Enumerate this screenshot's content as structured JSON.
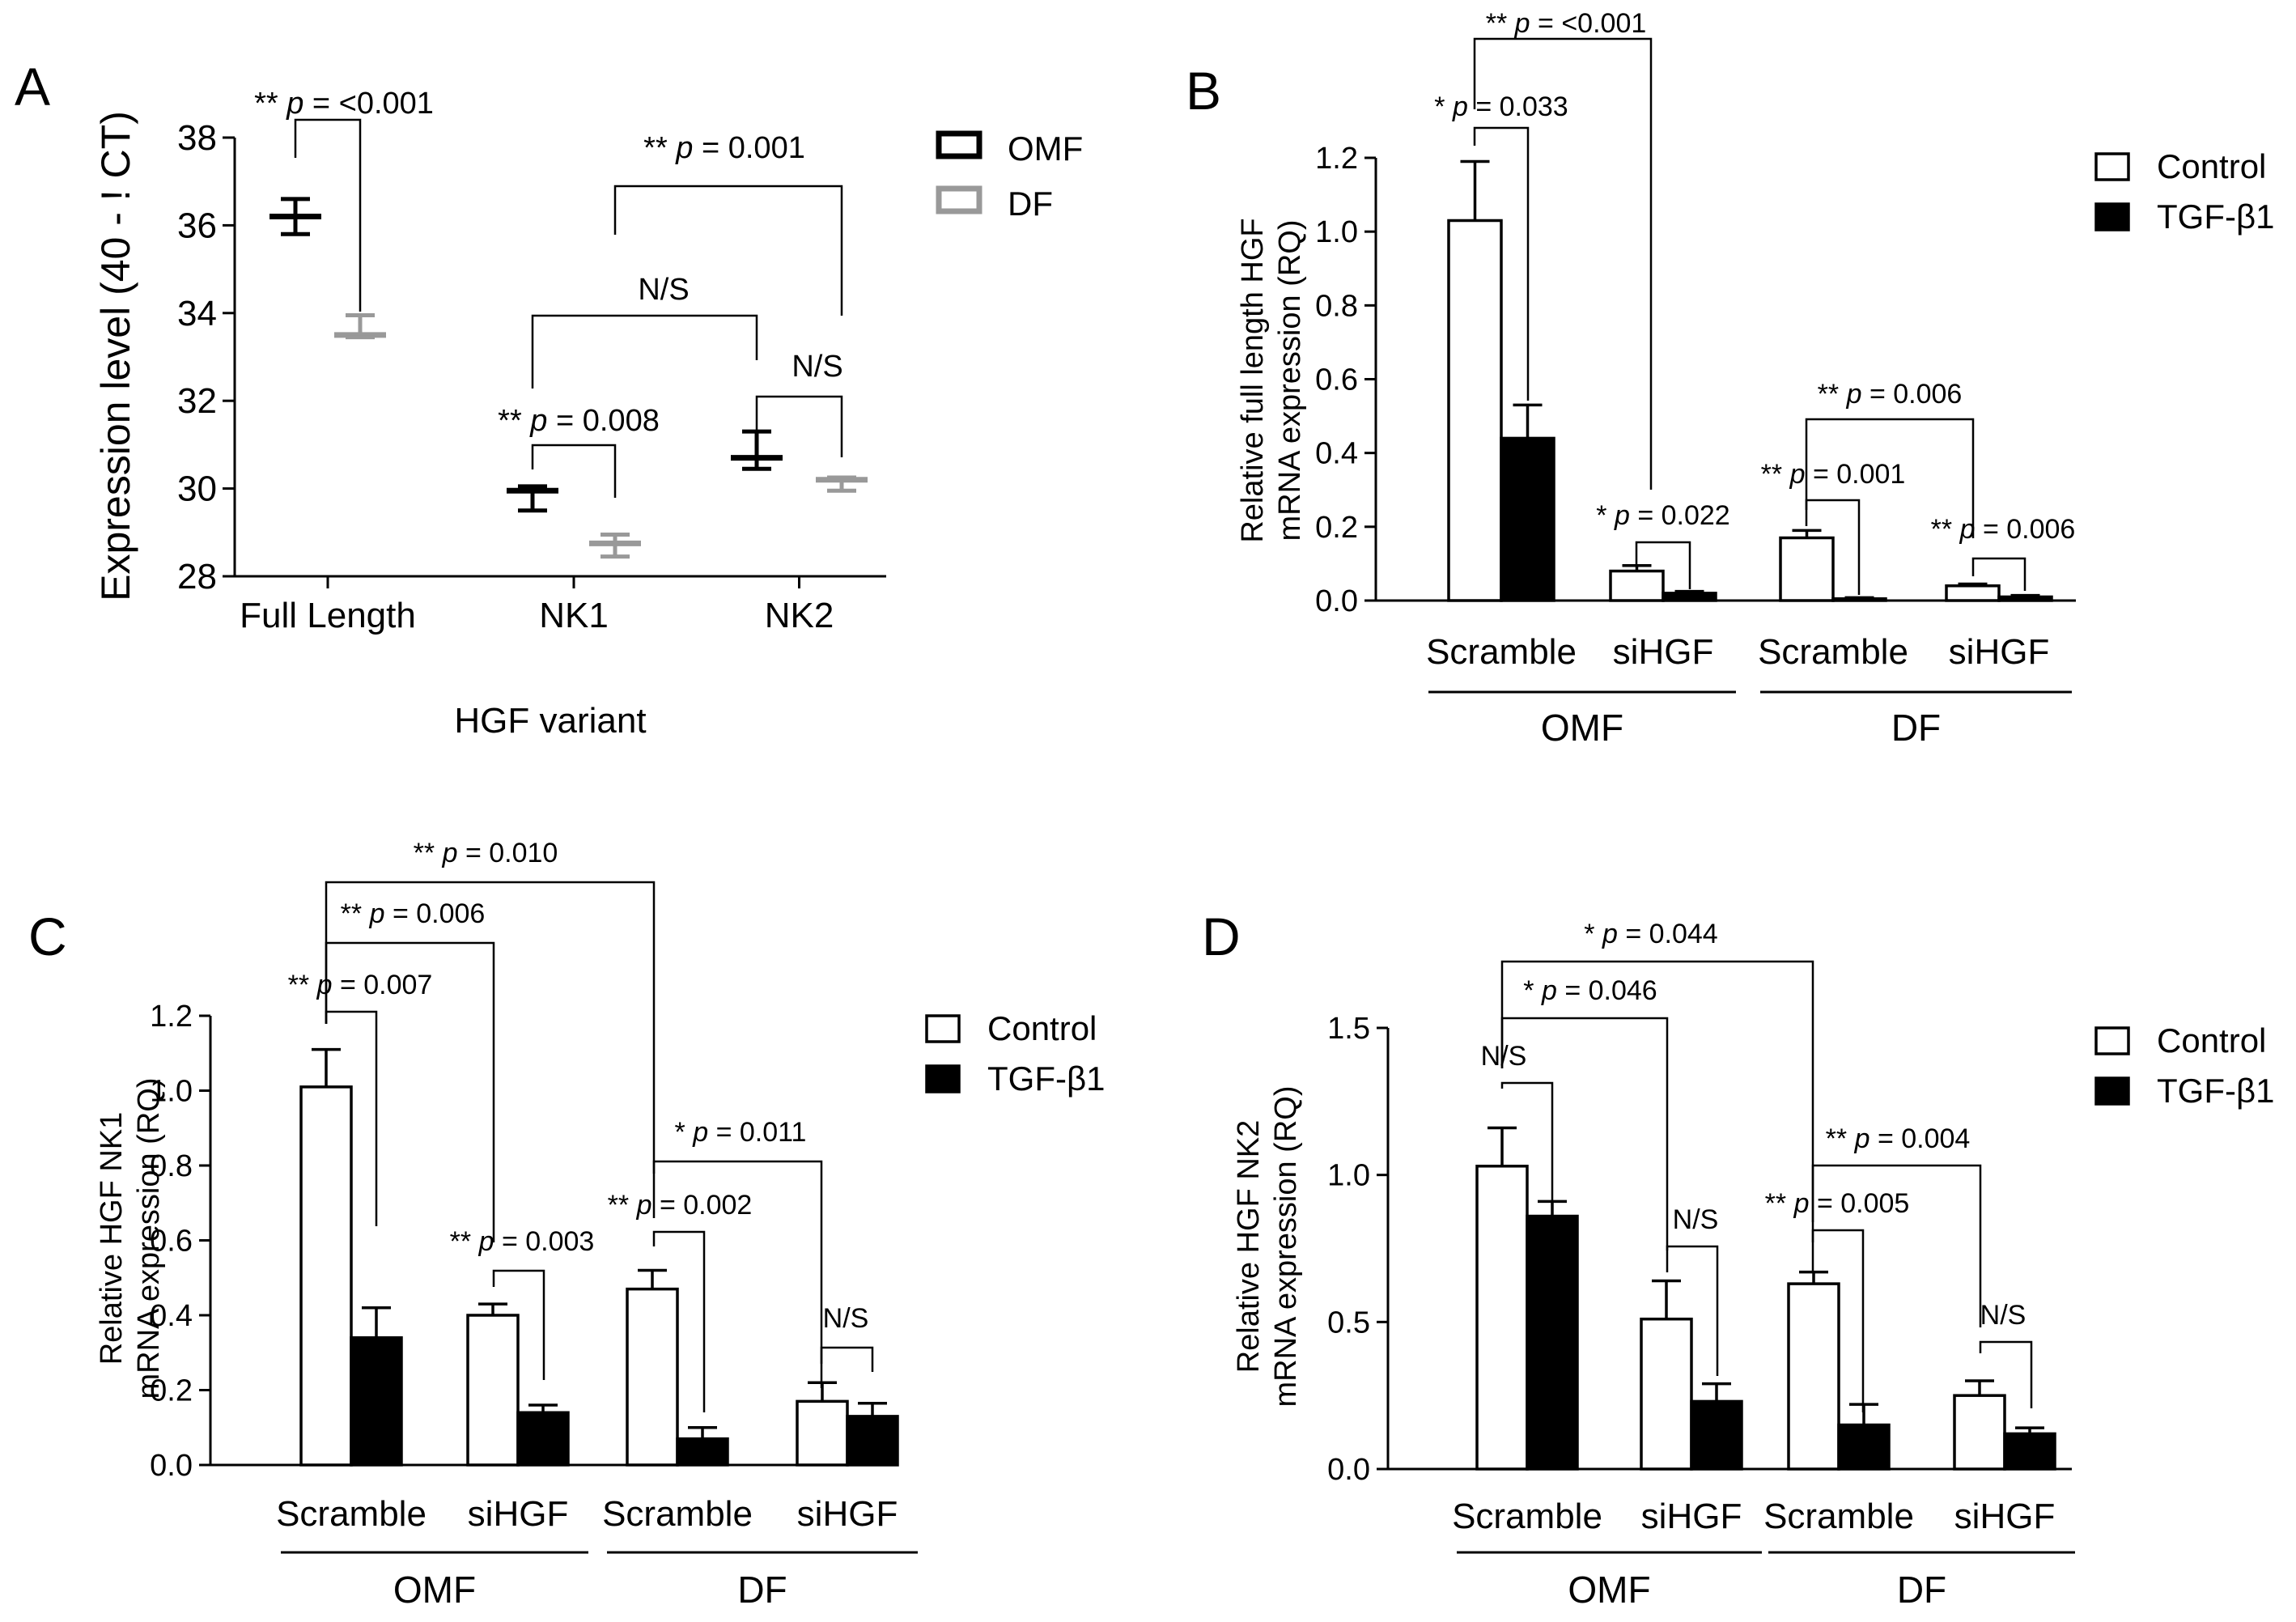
{
  "colors": {
    "omf": "#000000",
    "df": "#999999",
    "control": "#ffffff",
    "tgf": "#000000"
  },
  "chart_data": [
    {
      "panel": "A",
      "type": "scatter",
      "ylabel": "Expression level (40 - ! CT)",
      "xlabel": "HGF variant",
      "ylim": [
        28,
        38
      ],
      "yticks": [
        "28",
        "30",
        "32",
        "34",
        "36",
        "38"
      ],
      "categories": [
        "Full Length",
        "NK1",
        "NK2"
      ],
      "legend": {
        "placement": "top-right",
        "items": [
          "OMF",
          "DF"
        ]
      },
      "series": [
        {
          "name": "OMF",
          "mean": [
            36.2,
            29.95,
            30.7
          ],
          "upper": [
            36.6,
            30.05,
            31.3
          ],
          "lower": [
            35.8,
            29.5,
            30.45
          ]
        },
        {
          "name": "DF",
          "mean": [
            33.5,
            28.75,
            30.2
          ],
          "upper": [
            33.95,
            28.95,
            30.25
          ],
          "lower": [
            33.45,
            28.45,
            29.95
          ]
        }
      ],
      "comparisons": [
        {
          "stars": "**",
          "p": "<0.001",
          "ns": false
        },
        {
          "stars": "**",
          "p": "0.001",
          "ns": false
        },
        {
          "stars": "",
          "p": "",
          "ns": true
        },
        {
          "stars": "**",
          "p": "0.008",
          "ns": false
        },
        {
          "stars": "",
          "p": "",
          "ns": true
        }
      ]
    },
    {
      "panel": "B",
      "type": "bar",
      "ylabel_lines": [
        "Relative full length HGF",
        "mRNA expression (RQ)"
      ],
      "ylim": [
        0,
        1.2
      ],
      "yticks": [
        "0.0",
        "0.2",
        "0.4",
        "0.6",
        "0.8",
        "1.0",
        "1.2"
      ],
      "categories": [
        "Scramble",
        "siHGF",
        "Scramble",
        "siHGF"
      ],
      "groups": [
        "OMF",
        "DF"
      ],
      "legend": {
        "placement": "top-right",
        "items": [
          "Control",
          "TGF-β1"
        ]
      },
      "series": [
        {
          "name": "Control",
          "values": [
            1.03,
            0.08,
            0.17,
            0.04
          ],
          "errors": [
            0.16,
            0.015,
            0.02,
            0.005
          ]
        },
        {
          "name": "TGF-β1",
          "values": [
            0.44,
            0.02,
            0.005,
            0.01
          ],
          "errors": [
            0.09,
            0.005,
            0.003,
            0.004
          ]
        }
      ],
      "comparisons": [
        {
          "stars": "**",
          "p": "<0.001",
          "ns": false
        },
        {
          "stars": "*",
          "p": "0.033",
          "ns": false
        },
        {
          "stars": "*",
          "p": "0.022",
          "ns": false
        },
        {
          "stars": "**",
          "p": "0.006",
          "ns": false
        },
        {
          "stars": "**",
          "p": "0.001",
          "ns": false
        },
        {
          "stars": "**",
          "p": "0.006",
          "ns": false
        }
      ]
    },
    {
      "panel": "C",
      "type": "bar",
      "ylabel_lines": [
        "Relative HGF NK1",
        "mRNA expression (RQ)"
      ],
      "ylim": [
        0,
        1.2
      ],
      "yticks": [
        "0.0",
        "0.2",
        "0.4",
        "0.6",
        "0.8",
        "1.0",
        "1.2"
      ],
      "categories": [
        "Scramble",
        "siHGF",
        "Scramble",
        "siHGF"
      ],
      "groups": [
        "OMF",
        "DF"
      ],
      "legend": {
        "placement": "top-right",
        "items": [
          "Control",
          "TGF-β1"
        ]
      },
      "series": [
        {
          "name": "Control",
          "values": [
            1.01,
            0.4,
            0.47,
            0.17
          ],
          "errors": [
            0.1,
            0.03,
            0.05,
            0.05
          ]
        },
        {
          "name": "TGF-β1",
          "values": [
            0.34,
            0.14,
            0.07,
            0.13
          ],
          "errors": [
            0.08,
            0.02,
            0.03,
            0.035
          ]
        }
      ],
      "comparisons": [
        {
          "stars": "**",
          "p": "0.010",
          "ns": false
        },
        {
          "stars": "**",
          "p": "0.006",
          "ns": false
        },
        {
          "stars": "**",
          "p": "0.007",
          "ns": false
        },
        {
          "stars": "**",
          "p": "0.003",
          "ns": false
        },
        {
          "stars": "*",
          "p": "0.011",
          "ns": false
        },
        {
          "stars": "**",
          "p": "0.002",
          "ns": false
        },
        {
          "stars": "",
          "p": "",
          "ns": true
        }
      ]
    },
    {
      "panel": "D",
      "type": "bar",
      "ylabel_lines": [
        "Relative HGF NK2",
        "mRNA expression (RQ)"
      ],
      "ylim": [
        0,
        1.5
      ],
      "yticks": [
        "0.0",
        "0.5",
        "1.0",
        "1.5"
      ],
      "categories": [
        "Scramble",
        "siHGF",
        "Scramble",
        "siHGF"
      ],
      "groups": [
        "OMF",
        "DF"
      ],
      "legend": {
        "placement": "top-right",
        "items": [
          "Control",
          "TGF-β1"
        ]
      },
      "series": [
        {
          "name": "Control",
          "values": [
            1.03,
            0.51,
            0.63,
            0.25
          ],
          "errors": [
            0.13,
            0.13,
            0.04,
            0.05
          ]
        },
        {
          "name": "TGF-β1",
          "values": [
            0.86,
            0.23,
            0.15,
            0.12
          ],
          "errors": [
            0.05,
            0.06,
            0.07,
            0.02
          ]
        }
      ],
      "comparisons": [
        {
          "stars": "*",
          "p": "0.044",
          "ns": false
        },
        {
          "stars": "*",
          "p": "0.046",
          "ns": false
        },
        {
          "stars": "",
          "p": "",
          "ns": true
        },
        {
          "stars": "",
          "p": "",
          "ns": true
        },
        {
          "stars": "**",
          "p": "0.004",
          "ns": false
        },
        {
          "stars": "**",
          "p": "0.005",
          "ns": false
        },
        {
          "stars": "",
          "p": "",
          "ns": true
        }
      ]
    }
  ],
  "labels": {
    "ns_text": "N/S",
    "p_prefix": "p",
    "equals": "="
  }
}
